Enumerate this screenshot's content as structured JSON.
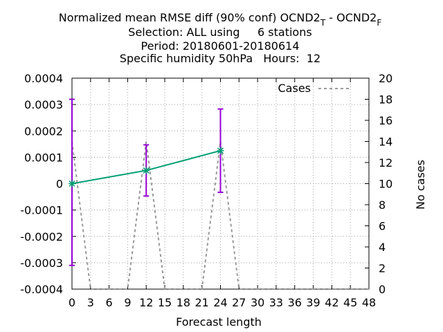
{
  "chart_data": {
    "type": "line",
    "title_lines": [
      {
        "main": "Normalized mean RMSE diff (90% conf) OCND2",
        "sub1": "T",
        "mid": " - OCND2",
        "sub2": "F"
      },
      {
        "main": "Selection: ALL using     6 stations"
      },
      {
        "main": "Period: 20180601-20180614"
      },
      {
        "main": "Specific humidity 50hPa   Hours:  12"
      }
    ],
    "xlabel": "Forecast length",
    "ylabel_right": "No cases",
    "xlim": [
      0,
      48
    ],
    "xticks": [
      0,
      3,
      6,
      9,
      12,
      15,
      18,
      21,
      24,
      27,
      30,
      33,
      36,
      39,
      42,
      45,
      48
    ],
    "ylim_left": [
      -0.0004,
      0.0004
    ],
    "yticks_left": [
      "-0.0004",
      "-0.0003",
      "-0.0002",
      "-0.0001",
      "0",
      "0.0001",
      "0.0002",
      "0.0003",
      "0.0004"
    ],
    "ylim_right": [
      0,
      20
    ],
    "yticks_right": [
      0,
      2,
      4,
      6,
      8,
      10,
      12,
      14,
      16,
      18,
      20
    ],
    "legend": {
      "label": "Cases",
      "position": "top-right"
    },
    "series": [
      {
        "name": "",
        "kind": "line-errorbars",
        "color": "#009e73",
        "errcolor": "#9400d3",
        "x": [
          0,
          12,
          24
        ],
        "y": [
          0.0,
          5e-05,
          0.000125
        ],
        "err_low": [
          -0.00031,
          -4.7e-05,
          -3.3e-05
        ],
        "err_high": [
          0.00032,
          0.000147,
          0.000283
        ]
      },
      {
        "name": "Cases",
        "kind": "dashed",
        "axis": "right",
        "color": "#999999",
        "x": [
          0,
          3,
          6,
          9,
          12,
          15,
          18,
          21,
          24,
          27,
          30,
          33,
          36,
          39,
          42,
          45,
          48
        ],
        "y": [
          14,
          0,
          0,
          0,
          14,
          0,
          0,
          0,
          14,
          0,
          0,
          0,
          0,
          0,
          0,
          0,
          0
        ]
      }
    ]
  }
}
